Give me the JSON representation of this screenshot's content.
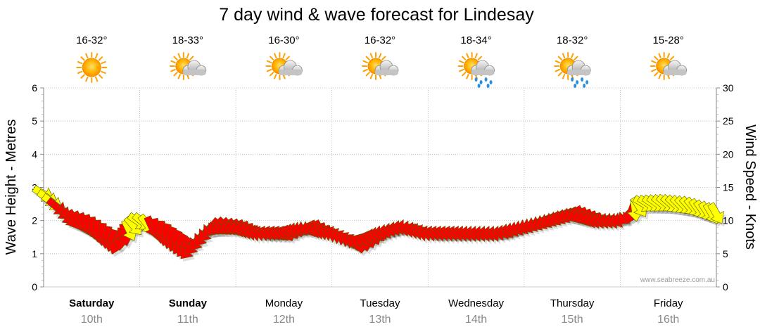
{
  "chart_data": {
    "type": "line",
    "title": "7 day wind & wave forecast for Lindesay",
    "ylabel_left": "Wave Height - Metres",
    "ylabel_right": "Wind Speed - Knots",
    "ylim_left": [
      0,
      6
    ],
    "ylim_right": [
      0,
      30
    ],
    "yticks_left": [
      "0",
      "1",
      "2",
      "3",
      "4",
      "5",
      "6"
    ],
    "yticks_right": [
      "0",
      "5",
      "10",
      "15",
      "20",
      "25",
      "30"
    ],
    "grid": true,
    "watermark": "www.seabreeze.com.au",
    "days": [
      {
        "name": "Saturday",
        "date": "10th",
        "temp": "16-32°",
        "weather": "sunny",
        "bold": true
      },
      {
        "name": "Sunday",
        "date": "11th",
        "temp": "18-33°",
        "weather": "partly-cloudy",
        "bold": true
      },
      {
        "name": "Monday",
        "date": "12th",
        "temp": "16-30°",
        "weather": "partly-cloudy",
        "bold": false
      },
      {
        "name": "Tuesday",
        "date": "13th",
        "temp": "16-32°",
        "weather": "partly-cloudy",
        "bold": false
      },
      {
        "name": "Wednesday",
        "date": "14th",
        "temp": "18-34°",
        "weather": "showers",
        "bold": false
      },
      {
        "name": "Thursday",
        "date": "15th",
        "temp": "18-32°",
        "weather": "showers",
        "bold": false
      },
      {
        "name": "Friday",
        "date": "16th",
        "temp": "15-28°",
        "weather": "partly-cloudy",
        "bold": false
      }
    ],
    "series": [
      {
        "name": "",
        "unit": "knots",
        "x_days": [
          0.0,
          0.25,
          0.5,
          0.75,
          1.0,
          1.25,
          1.5,
          1.75,
          2.0,
          2.25,
          2.5,
          2.75,
          3.0,
          3.25,
          3.5,
          3.75,
          4.0,
          4.25,
          4.5,
          4.75,
          5.0,
          5.25,
          5.5,
          5.75,
          6.0,
          6.25,
          6.5,
          6.75,
          6.95
        ],
        "values": [
          14,
          10.5,
          9,
          6.5,
          10,
          8,
          5.5,
          9,
          9,
          8,
          8,
          9,
          8,
          6.5,
          8,
          9,
          8,
          8,
          8,
          8,
          9,
          10,
          11,
          10,
          10,
          12.5,
          12.5,
          12,
          11
        ],
        "direction_deg": [
          30,
          45,
          80,
          110,
          30,
          100,
          130,
          130,
          160,
          190,
          200,
          150,
          200,
          220,
          170,
          180,
          190,
          190,
          180,
          180,
          160,
          150,
          150,
          170,
          170,
          30,
          40,
          50,
          60
        ],
        "colors": [
          "#ffff00",
          "#ff0000",
          "#ff0000",
          "#ff0000",
          "#ffff00",
          "#ff0000",
          "#ff0000",
          "#ff0000",
          "#ff0000",
          "#ff0000",
          "#ff0000",
          "#ff0000",
          "#ff0000",
          "#ff0000",
          "#ff0000",
          "#ff0000",
          "#ff0000",
          "#ff0000",
          "#ff0000",
          "#ff0000",
          "#ff0000",
          "#ff0000",
          "#ff0000",
          "#ff0000",
          "#ff0000",
          "#ffff00",
          "#ffff00",
          "#ffff00",
          "#ffff00"
        ]
      }
    ]
  }
}
